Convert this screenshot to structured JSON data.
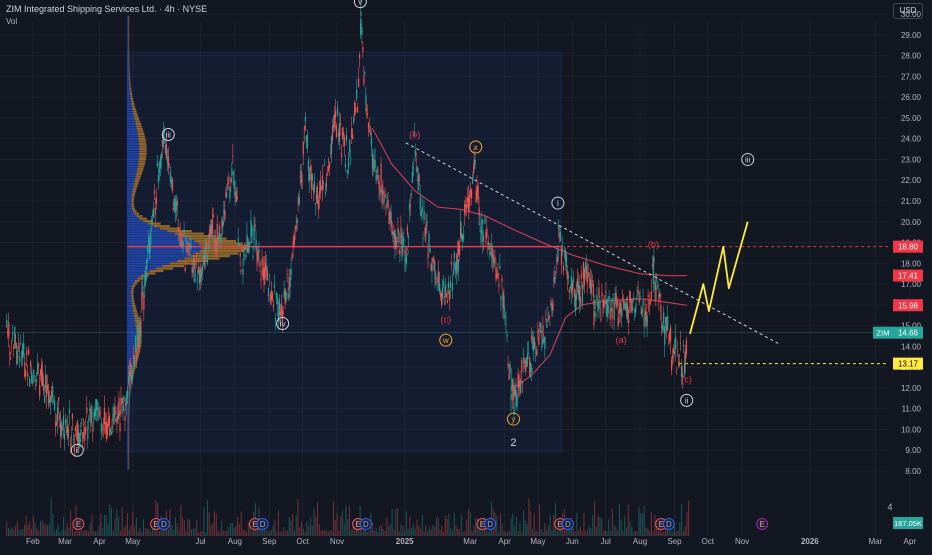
{
  "header": {
    "title": "ZIM Integrated Shipping Services Ltd. · 4h · NYSE",
    "volume_label": "Vol",
    "currency": "USD"
  },
  "chart_data": {
    "type": "candlestick",
    "title": "ZIM Integrated Shipping Services Ltd. · 4h · NYSE",
    "ticker": "ZIM",
    "y_axis": {
      "range": [
        7.5,
        32.0
      ],
      "ticks": [
        "8.00",
        "9.00",
        "10.00",
        "11.00",
        "12.00",
        "13.00",
        "14.00",
        "15.00",
        "16.00",
        "17.00",
        "18.00",
        "19.00",
        "20.00",
        "21.00",
        "22.00",
        "23.00",
        "24.00",
        "25.00",
        "26.00",
        "27.00",
        "28.00",
        "29.00",
        "30.00",
        "31.00"
      ],
      "tick_values": [
        8,
        9,
        10,
        11,
        12,
        13,
        14,
        15,
        16,
        17,
        18,
        19,
        20,
        21,
        22,
        23,
        24,
        25,
        26,
        27,
        28,
        29,
        30,
        31
      ]
    },
    "x_axis": {
      "labels": [
        "Feb",
        "Mar",
        "Apr",
        "May",
        "Jul",
        "Aug",
        "Sep",
        "Oct",
        "Nov",
        "2025",
        "Mar",
        "Apr",
        "May",
        "Jun",
        "Jul",
        "Aug",
        "Sep",
        "Oct",
        "Nov",
        "2026",
        "Mar",
        "Apr"
      ],
      "dates": [
        "2024-02-01",
        "2024-03-01",
        "2024-04-01",
        "2024-05-01",
        "2024-07-01",
        "2024-08-01",
        "2024-09-01",
        "2024-10-01",
        "2024-11-01",
        "2025-01-01",
        "2025-03-01",
        "2025-04-01",
        "2025-05-01",
        "2025-06-01",
        "2025-07-01",
        "2025-08-01",
        "2025-09-01",
        "2025-10-01",
        "2025-11-01",
        "2026-01-01",
        "2026-03-01",
        "2026-04-01"
      ],
      "start": "2024-01-06",
      "end": "2026-04-25"
    },
    "price_path": [
      [
        "2024-01-08",
        14.6
      ],
      [
        "2024-01-25",
        13.2
      ],
      [
        "2024-02-12",
        12.0
      ],
      [
        "2024-02-28",
        10.2
      ],
      [
        "2024-03-12",
        9.8
      ],
      [
        "2024-03-26",
        10.5
      ],
      [
        "2024-04-10",
        10.1
      ],
      [
        "2024-04-24",
        11.2
      ],
      [
        "2024-05-06",
        14.5
      ],
      [
        "2024-05-13",
        17.8
      ],
      [
        "2024-05-20",
        21.0
      ],
      [
        "2024-05-29",
        24.0
      ],
      [
        "2024-06-06",
        21.0
      ],
      [
        "2024-06-14",
        19.0
      ],
      [
        "2024-06-25",
        17.6
      ],
      [
        "2024-07-05",
        18.2
      ],
      [
        "2024-07-12",
        19.5
      ],
      [
        "2024-07-18",
        18.8
      ],
      [
        "2024-07-30",
        22.8
      ],
      [
        "2024-08-06",
        17.9
      ],
      [
        "2024-08-16",
        19.3
      ],
      [
        "2024-08-28",
        17.6
      ],
      [
        "2024-09-06",
        16.0
      ],
      [
        "2024-09-13",
        15.8
      ],
      [
        "2024-09-23",
        19.0
      ],
      [
        "2024-10-03",
        24.2
      ],
      [
        "2024-10-12",
        20.8
      ],
      [
        "2024-10-22",
        22.2
      ],
      [
        "2024-10-31",
        25.0
      ],
      [
        "2024-11-11",
        22.8
      ],
      [
        "2024-11-19",
        26.0
      ],
      [
        "2024-11-22",
        30.2
      ],
      [
        "2024-11-27",
        25.0
      ],
      [
        "2024-12-03",
        23.0
      ],
      [
        "2024-12-12",
        21.6
      ],
      [
        "2024-12-20",
        19.5
      ],
      [
        "2025-01-02",
        18.7
      ],
      [
        "2025-01-10",
        23.8
      ],
      [
        "2025-01-17",
        20.0
      ],
      [
        "2025-01-31",
        17.0
      ],
      [
        "2025-02-07",
        16.2
      ],
      [
        "2025-02-18",
        18.5
      ],
      [
        "2025-03-04",
        22.5
      ],
      [
        "2025-03-11",
        19.5
      ],
      [
        "2025-03-21",
        18.6
      ],
      [
        "2025-03-31",
        16.0
      ],
      [
        "2025-04-07",
        11.6
      ],
      [
        "2025-04-09",
        11.2
      ],
      [
        "2025-04-15",
        12.5
      ],
      [
        "2025-04-25",
        13.5
      ],
      [
        "2025-05-05",
        14.3
      ],
      [
        "2025-05-14",
        15.8
      ],
      [
        "2025-05-19",
        19.2
      ],
      [
        "2025-05-27",
        17.5
      ],
      [
        "2025-06-06",
        16.4
      ],
      [
        "2025-06-14",
        17.8
      ],
      [
        "2025-06-20",
        16.0
      ],
      [
        "2025-07-01",
        16.3
      ],
      [
        "2025-07-15",
        15.8
      ],
      [
        "2025-07-28",
        16.0
      ],
      [
        "2025-08-08",
        15.6
      ],
      [
        "2025-08-13",
        17.8
      ],
      [
        "2025-08-20",
        15.5
      ],
      [
        "2025-08-28",
        14.0
      ],
      [
        "2025-09-05",
        13.3
      ],
      [
        "2025-09-12",
        13.4
      ]
    ],
    "horizontal_levels": [
      {
        "price": 18.8,
        "label": "18.80",
        "color": "#f23645",
        "style": "solid-left-dashed-right"
      },
      {
        "price": 17.41,
        "label": "17.41",
        "color": "#f23645"
      },
      {
        "price": 15.98,
        "label": "15.98",
        "color": "#f23645"
      },
      {
        "price": 14.66,
        "label": "14.66",
        "color": "#26a69a",
        "ticker_tag": "ZIM"
      },
      {
        "price": 13.17,
        "label": "13.17",
        "color": "#ffeb3b",
        "style": "dashed"
      }
    ],
    "volume_label": "187.05K",
    "trendline": {
      "from": [
        "2025-01-02",
        23.8
      ],
      "to": [
        "2025-12-05",
        14.1
      ],
      "style": "dashed"
    },
    "projection": [
      [
        "2025-09-15",
        14.6
      ],
      [
        "2025-09-27",
        17.0
      ],
      [
        "2025-10-02",
        15.7
      ],
      [
        "2025-10-15",
        18.8
      ],
      [
        "2025-10-20",
        16.8
      ],
      [
        "2025-11-06",
        20.0
      ]
    ],
    "wave_labels": [
      {
        "text": "1",
        "date": "2024-11-22",
        "price": 31.3,
        "style": "plain"
      },
      {
        "text": "v",
        "date": "2024-11-22",
        "price": 30.6,
        "style": "circle-white"
      },
      {
        "text": "iii",
        "date": "2024-06-02",
        "price": 24.2,
        "style": "circle-white"
      },
      {
        "text": "iv",
        "date": "2024-09-13",
        "price": 15.1,
        "style": "circle-white"
      },
      {
        "text": "ii",
        "date": "2024-03-12",
        "price": 9.0,
        "style": "circle-white"
      },
      {
        "text": "(b)",
        "date": "2025-01-10",
        "price": 24.2,
        "style": "red"
      },
      {
        "text": "(a)",
        "date": "2024-12-31",
        "price": 18.6,
        "style": "red"
      },
      {
        "text": "(c)",
        "date": "2025-02-07",
        "price": 15.3,
        "style": "red"
      },
      {
        "text": "w",
        "date": "2025-02-07",
        "price": 14.3,
        "style": "circle-orange"
      },
      {
        "text": "x",
        "date": "2025-03-06",
        "price": 23.6,
        "style": "circle-orange"
      },
      {
        "text": "y",
        "date": "2025-04-09",
        "price": 10.5,
        "style": "circle-orange"
      },
      {
        "text": "2",
        "date": "2025-04-09",
        "price": 9.4,
        "style": "plain"
      },
      {
        "text": "i",
        "date": "2025-05-19",
        "price": 20.9,
        "style": "circle-white"
      },
      {
        "text": "(b)",
        "date": "2025-08-13",
        "price": 18.9,
        "style": "red"
      },
      {
        "text": "(a)",
        "date": "2025-07-15",
        "price": 14.3,
        "style": "red"
      },
      {
        "text": "(c)",
        "date": "2025-09-12",
        "price": 12.4,
        "style": "red"
      },
      {
        "text": "ii",
        "date": "2025-09-12",
        "price": 11.4,
        "style": "circle-white"
      },
      {
        "text": "iii",
        "date": "2025-11-06",
        "price": 23.0,
        "style": "circle-white"
      }
    ],
    "events": [
      {
        "date": "2024-03-13",
        "type": "E"
      },
      {
        "date": "2024-05-22",
        "type": "E"
      },
      {
        "date": "2024-05-29",
        "type": "D"
      },
      {
        "date": "2024-08-19",
        "type": "E"
      },
      {
        "date": "2024-08-26",
        "type": "D"
      },
      {
        "date": "2024-11-20",
        "type": "E"
      },
      {
        "date": "2024-11-27",
        "type": "D"
      },
      {
        "date": "2025-03-12",
        "type": "E"
      },
      {
        "date": "2025-03-19",
        "type": "D"
      },
      {
        "date": "2025-05-21",
        "type": "E"
      },
      {
        "date": "2025-05-28",
        "type": "D"
      },
      {
        "date": "2025-08-20",
        "type": "E"
      },
      {
        "date": "2025-08-27",
        "type": "D"
      },
      {
        "date": "2025-11-19",
        "type": "E"
      }
    ],
    "grid": true,
    "volume_profile": true
  },
  "colors": {
    "background": "#131722",
    "up": "#26a69a",
    "down": "#ef5350",
    "levels": "#f23645",
    "projection": "#ffeb3b",
    "ma": "#e0405a",
    "profile_blue": "#2962ff",
    "profile_orange": "#f9a825"
  }
}
